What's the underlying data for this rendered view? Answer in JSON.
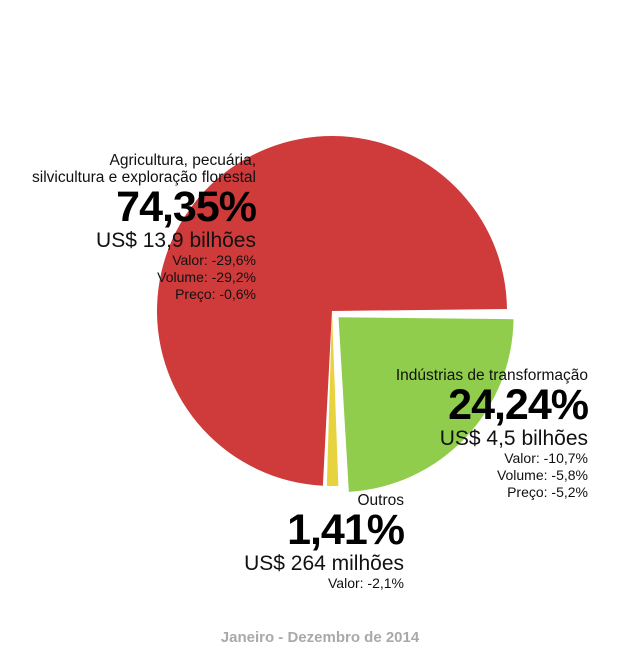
{
  "chart_data": {
    "type": "pie",
    "categories": [
      "Agricultura, pecuária, silvicultura e exploração florestal",
      "Indústrias de transformação",
      "Outros"
    ],
    "values": [
      74.35,
      24.24,
      1.41
    ],
    "colors": [
      "#cf3a3b",
      "#90cd4c",
      "#e6d33e"
    ],
    "explode": [
      0,
      1,
      0
    ],
    "slices": [
      {
        "name_lines": [
          "Agricultura, pecuária,",
          "silvicultura e exploração florestal"
        ],
        "pct": "74,35%",
        "value_text": "US$ 13,9 bilhões",
        "stats": [
          "Valor:  -29,6%",
          "Volume:  -29,2%",
          "Preço:  -0,6%"
        ]
      },
      {
        "name_lines": [
          "Indústrias de transformação"
        ],
        "pct": "24,24%",
        "value_text": "US$ 4,5 bilhões",
        "stats": [
          "Valor:  -10,7%",
          "Volume:  -5,8%",
          "Preço:  -5,2%"
        ]
      },
      {
        "name_lines": [
          "Outros"
        ],
        "pct": "1,41%",
        "value_text": "US$ 264 milhões",
        "stats": [
          "Valor:  -2,1%"
        ]
      }
    ]
  },
  "footer": "Janeiro - Dezembro de 2014"
}
